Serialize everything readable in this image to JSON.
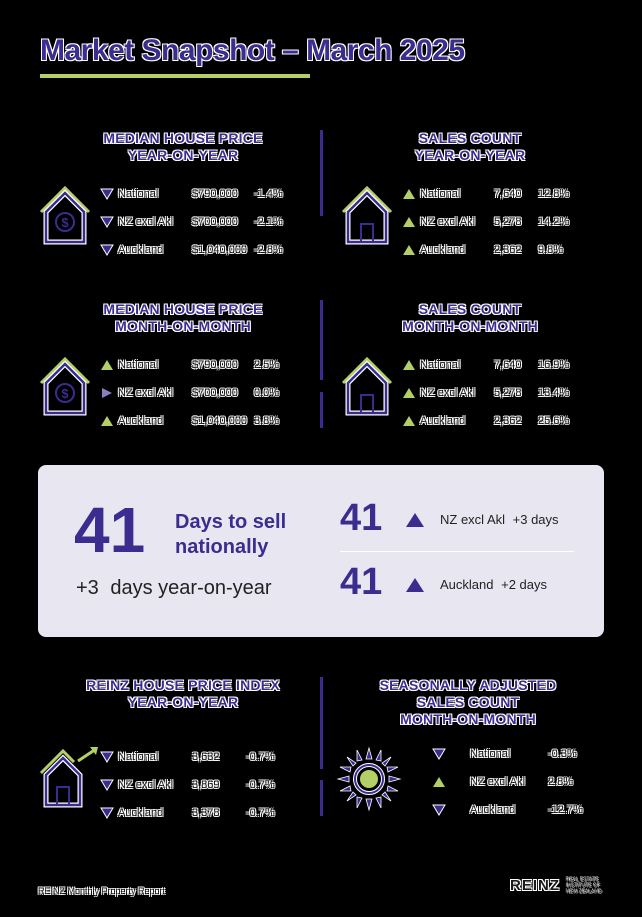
{
  "title": "Market Snapshot – March 2025",
  "colors": {
    "brand": "#3a2d8f",
    "accent": "#b4cf66",
    "panel": "#e8e6f1"
  },
  "quadrants": [
    {
      "title_line1": "MEDIAN HOUSE PRICE",
      "title_line2": "YEAR-ON-YEAR",
      "icon": "house-dollar-icon",
      "rows": [
        {
          "dir": "down",
          "label": "National",
          "value": "$790,000",
          "pct": "-1.4%"
        },
        {
          "dir": "down",
          "label": "NZ excl Akl",
          "value": "$700,000",
          "pct": "-2.1%"
        },
        {
          "dir": "down",
          "label": "Auckland",
          "value": "$1,040,000",
          "pct": "-2.8%"
        }
      ]
    },
    {
      "title_line1": "SALES COUNT",
      "title_line2": "YEAR-ON-YEAR",
      "icon": "house-icon",
      "rows": [
        {
          "dir": "up",
          "label": "National",
          "value": "7,640",
          "pct": "12.8%"
        },
        {
          "dir": "up",
          "label": "NZ excl Akl",
          "value": "5,278",
          "pct": "14.2%"
        },
        {
          "dir": "up",
          "label": "Auckland",
          "value": "2,362",
          "pct": "9.8%"
        }
      ]
    },
    {
      "title_line1": "MEDIAN HOUSE PRICE",
      "title_line2": "MONTH-ON-MONTH",
      "icon": "house-dollar-icon",
      "rows": [
        {
          "dir": "up",
          "label": "National",
          "value": "$790,000",
          "pct": "2.5%"
        },
        {
          "dir": "flat",
          "label": "NZ excl Akl",
          "value": "$700,000",
          "pct": "0.0%"
        },
        {
          "dir": "up",
          "label": "Auckland",
          "value": "$1,040,000",
          "pct": "3.8%"
        }
      ]
    },
    {
      "title_line1": "SALES COUNT",
      "title_line2": "MONTH-ON-MONTH",
      "icon": "house-icon",
      "rows": [
        {
          "dir": "up",
          "label": "National",
          "value": "7,640",
          "pct": "16.9%"
        },
        {
          "dir": "up",
          "label": "NZ excl Akl",
          "value": "5,278",
          "pct": "13.4%"
        },
        {
          "dir": "up",
          "label": "Auckland",
          "value": "2,362",
          "pct": "25.6%"
        }
      ]
    },
    {
      "title_line1": "REINZ HOUSE PRICE INDEX",
      "title_line2": "YEAR-ON-YEAR",
      "title_line3": "",
      "icon": "house-growth-icon",
      "rows": [
        {
          "dir": "down",
          "label": "National",
          "value": "3,632",
          "pct": "-0.7%"
        },
        {
          "dir": "down",
          "label": "NZ excl Akl",
          "value": "3,869",
          "pct": "-0.7%"
        },
        {
          "dir": "down",
          "label": "Auckland",
          "value": "3,378",
          "pct": "-0.7%"
        }
      ]
    },
    {
      "title_line1": "SEASONALLY ADJUSTED",
      "title_line2": "SALES COUNT",
      "title_line3": "MONTH-ON-MONTH",
      "icon": "sun-icon",
      "rows": [
        {
          "dir": "down",
          "label": "National",
          "value": "",
          "pct": "-0.3%"
        },
        {
          "dir": "up",
          "label": "NZ excl Akl",
          "value": "",
          "pct": "2.8%"
        },
        {
          "dir": "down",
          "label": "Auckland",
          "value": "",
          "pct": "-12.7%"
        }
      ]
    }
  ],
  "days_panel": {
    "big_number": "41",
    "headline_line1": "Days to sell",
    "headline_line2": "nationally",
    "yoy_change": "+3",
    "yoy_label": "days year-on-year",
    "regions": [
      {
        "number": "41",
        "dir": "up",
        "label": "NZ excl Akl",
        "change": "+3 days"
      },
      {
        "number": "41",
        "dir": "up",
        "label": "Auckland",
        "change": "+2  days"
      }
    ]
  },
  "footer": {
    "report": "REINZ Monthly Property Report",
    "logo": "REINZ",
    "logo_sub": "REAL ESTATE INSTITUTE OF NEW ZEALAND"
  }
}
